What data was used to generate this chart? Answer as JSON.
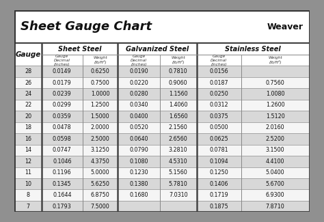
{
  "title": "Sheet Gauge Chart",
  "bg_outer": "#909090",
  "bg_white": "#ffffff",
  "bg_header": "#ffffff",
  "row_even": "#d8d8d8",
  "row_odd": "#f5f5f5",
  "border_heavy": "#333333",
  "border_light": "#888888",
  "col_groups": [
    "Sheet Steel",
    "Galvanized Steel",
    "Stainless Steel"
  ],
  "gauges": [
    28,
    26,
    24,
    22,
    20,
    18,
    16,
    14,
    12,
    11,
    10,
    8,
    7
  ],
  "sheet_steel": [
    [
      "0.0149",
      "0.6250"
    ],
    [
      "0.0179",
      "0.7500"
    ],
    [
      "0.0239",
      "1.0000"
    ],
    [
      "0.0299",
      "1.2500"
    ],
    [
      "0.0359",
      "1.5000"
    ],
    [
      "0.0478",
      "2.0000"
    ],
    [
      "0.0598",
      "2.5000"
    ],
    [
      "0.0747",
      "3.1250"
    ],
    [
      "0.1046",
      "4.3750"
    ],
    [
      "0.1196",
      "5.0000"
    ],
    [
      "0.1345",
      "5.6250"
    ],
    [
      "0.1644",
      "6.8750"
    ],
    [
      "0.1793",
      "7.5000"
    ]
  ],
  "galvanized_steel": [
    [
      "0.0190",
      "0.7810"
    ],
    [
      "0.0220",
      "0.9060"
    ],
    [
      "0.0280",
      "1.1560"
    ],
    [
      "0.0340",
      "1.4060"
    ],
    [
      "0.0400",
      "1.6560"
    ],
    [
      "0.0520",
      "2.1560"
    ],
    [
      "0.0640",
      "2.6560"
    ],
    [
      "0.0790",
      "3.2810"
    ],
    [
      "0.1080",
      "4.5310"
    ],
    [
      "0.1230",
      "5.1560"
    ],
    [
      "0.1380",
      "5.7810"
    ],
    [
      "0.1680",
      "7.0310"
    ],
    [
      "",
      ""
    ]
  ],
  "stainless_steel": [
    [
      "0.0156",
      ""
    ],
    [
      "0.0187",
      "0.7560"
    ],
    [
      "0.0250",
      "1.0080"
    ],
    [
      "0.0312",
      "1.2600"
    ],
    [
      "0.0375",
      "1.5120"
    ],
    [
      "0.0500",
      "2.0160"
    ],
    [
      "0.0625",
      "2.5200"
    ],
    [
      "0.0781",
      "3.1500"
    ],
    [
      "0.1094",
      "4.4100"
    ],
    [
      "0.1250",
      "5.0400"
    ],
    [
      "0.1406",
      "5.6700"
    ],
    [
      "0.1719",
      "6.9300"
    ],
    [
      "0.1875",
      "7.8710"
    ]
  ]
}
